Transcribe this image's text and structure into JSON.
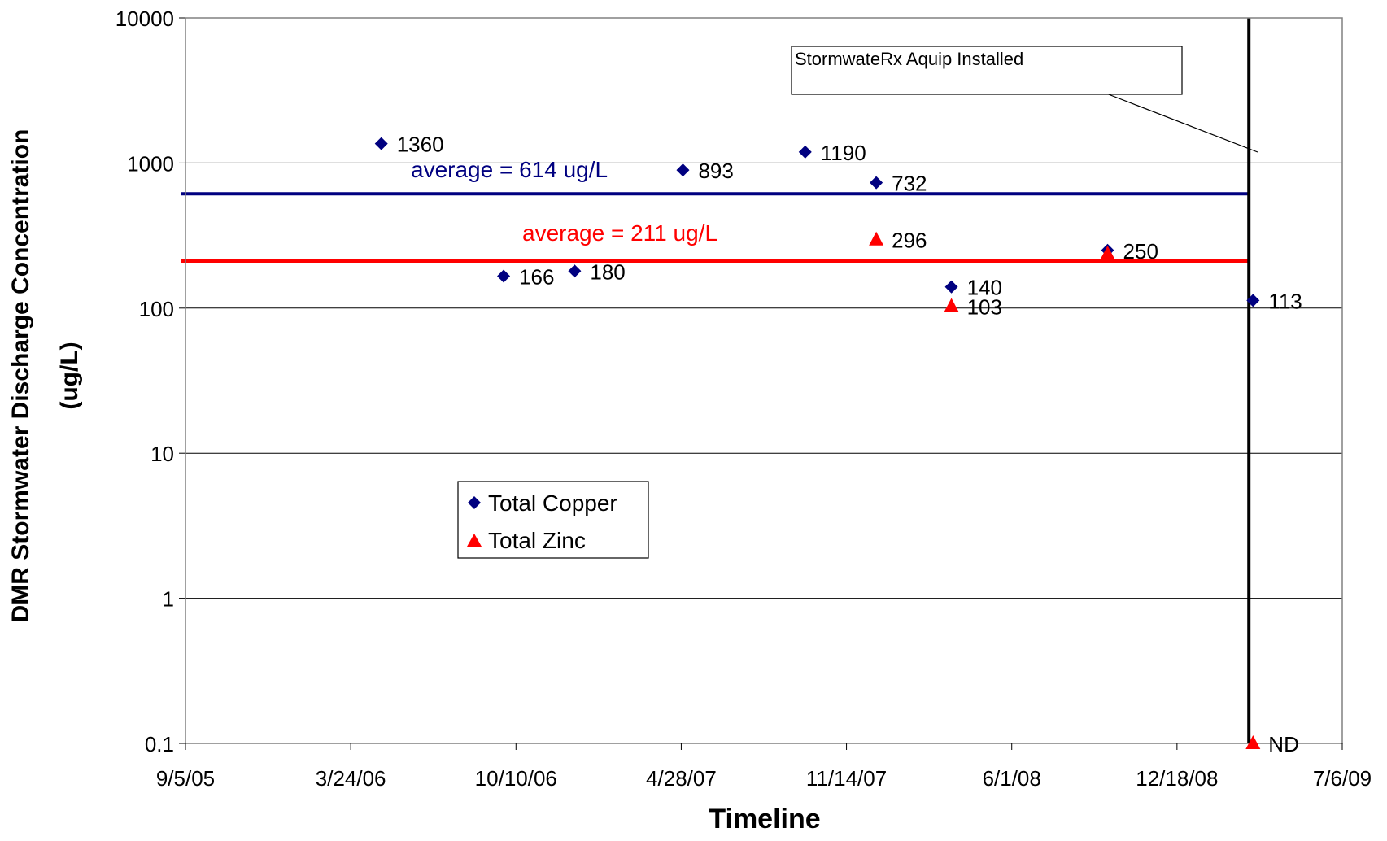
{
  "chart_data": {
    "type": "scatter",
    "title": "",
    "xlabel": "Timeline",
    "ylabel_line1": "DMR Stormwater Discharge Concentration",
    "ylabel_line2": "(ug/L)",
    "y_scale": "log",
    "ylim": [
      0.1,
      10000
    ],
    "xlim": [
      "2005-09-05",
      "2009-07-06"
    ],
    "y_ticks": [
      {
        "value": 0.1,
        "label": "0.1"
      },
      {
        "value": 1,
        "label": "1"
      },
      {
        "value": 10,
        "label": "10"
      },
      {
        "value": 100,
        "label": "100"
      },
      {
        "value": 1000,
        "label": "1000"
      },
      {
        "value": 10000,
        "label": "10000"
      }
    ],
    "x_ticks": [
      {
        "value": "2005-09-05",
        "label": "9/5/05"
      },
      {
        "value": "2006-03-24",
        "label": "3/24/06"
      },
      {
        "value": "2006-10-10",
        "label": "10/10/06"
      },
      {
        "value": "2007-04-28",
        "label": "4/28/07"
      },
      {
        "value": "2007-11-14",
        "label": "11/14/07"
      },
      {
        "value": "2008-06-01",
        "label": "6/1/08"
      },
      {
        "value": "2008-12-18",
        "label": "12/18/08"
      },
      {
        "value": "2009-07-06",
        "label": "7/6/09"
      }
    ],
    "grid": "horizontal",
    "series": [
      {
        "name": "Total Copper",
        "marker": "diamond",
        "color": "#000080",
        "points": [
          {
            "x": "2006-04-30",
            "y": 1360,
            "label": "1360"
          },
          {
            "x": "2006-09-25",
            "y": 166,
            "label": "166"
          },
          {
            "x": "2006-12-20",
            "y": 180,
            "label": "180"
          },
          {
            "x": "2007-04-30",
            "y": 893,
            "label": "893"
          },
          {
            "x": "2007-09-25",
            "y": 1190,
            "label": "1190"
          },
          {
            "x": "2007-12-20",
            "y": 732,
            "label": "732"
          },
          {
            "x": "2008-03-20",
            "y": 140,
            "label": "140"
          },
          {
            "x": "2008-09-25",
            "y": 250,
            "label": "250"
          },
          {
            "x": "2009-03-20",
            "y": 113,
            "label": "113"
          }
        ]
      },
      {
        "name": "Total Zinc",
        "marker": "triangle",
        "color": "#ff0000",
        "points": [
          {
            "x": "2007-12-20",
            "y": 296,
            "label": "296"
          },
          {
            "x": "2008-03-20",
            "y": 103,
            "label": "103"
          },
          {
            "x": "2008-09-25",
            "y": 237,
            "label": ""
          },
          {
            "x": "2009-03-20",
            "y": 0.1,
            "label": "ND"
          }
        ]
      }
    ],
    "reference_lines": [
      {
        "kind": "horizontal",
        "y": 614,
        "color": "#000080",
        "label": "average = 614 ug/L",
        "x_end": "2009-03-15"
      },
      {
        "kind": "horizontal",
        "y": 211,
        "color": "#ff0000",
        "label": "average = 211 ug/L",
        "x_end": "2009-03-15"
      },
      {
        "kind": "vertical",
        "x": "2009-03-15",
        "color": "#000000"
      }
    ],
    "annotation": {
      "text": "StormwateRx Aquip Installed"
    },
    "legend": {
      "placement": "center-left",
      "entries": [
        "Total Copper",
        "Total Zinc"
      ]
    }
  }
}
